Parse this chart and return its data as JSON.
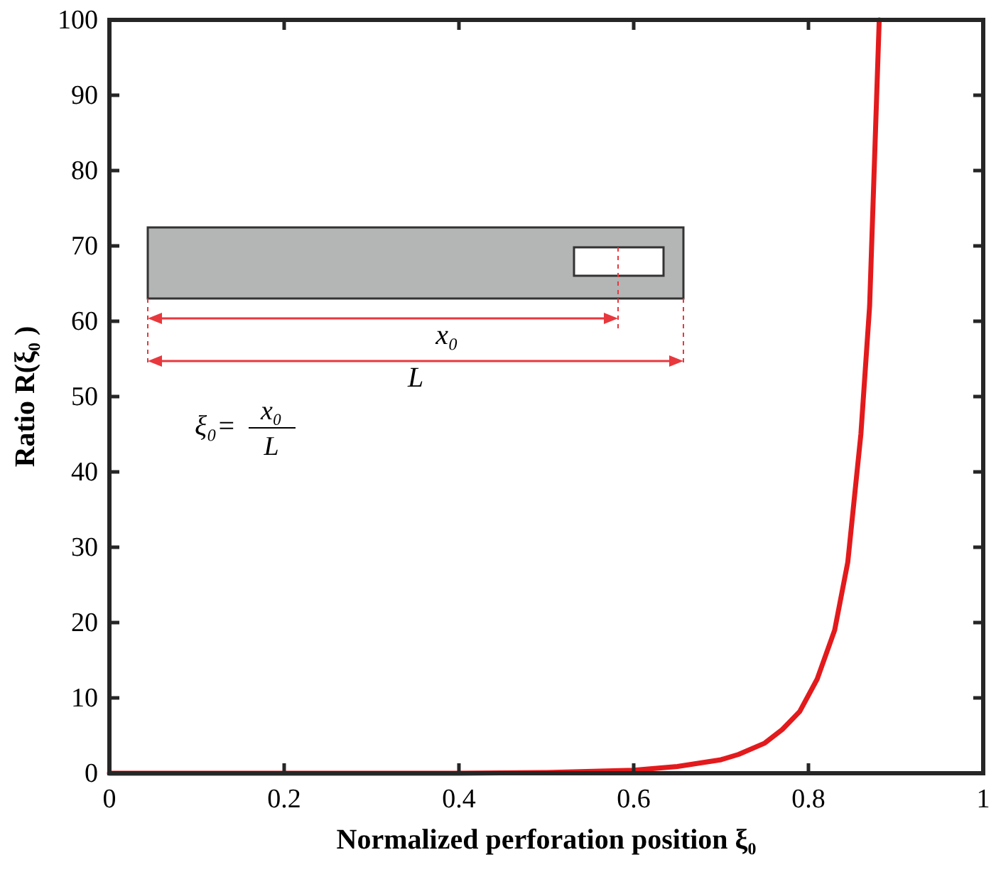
{
  "chart_data": {
    "type": "line",
    "xlabel": "Normalized perforation position ξ₀",
    "ylabel": "Ratio R(ξ₀ )",
    "series": [
      {
        "color": "#e31a1c",
        "x": [
          0,
          0.2,
          0.4,
          0.5,
          0.6,
          0.65,
          0.7,
          0.72,
          0.75,
          0.77,
          0.79,
          0.81,
          0.83,
          0.845,
          0.86,
          0.87,
          0.881
        ],
        "values": [
          0,
          0,
          0,
          0.1,
          0.4,
          0.9,
          1.8,
          2.5,
          4,
          5.8,
          8.2,
          12.5,
          19,
          28,
          45,
          62,
          100
        ]
      }
    ],
    "xlim": [
      0,
      1
    ],
    "xticks": [
      0,
      0.2,
      0.4,
      0.6,
      0.8,
      1
    ],
    "ylim": [
      0,
      100
    ],
    "yticks": [
      0,
      10,
      20,
      30,
      40,
      50,
      60,
      70,
      80,
      90,
      100
    ],
    "annotations": [
      "x₀",
      "L",
      "ξ₀=",
      "x₀",
      "L"
    ],
    "marker": "none",
    "line_style": "solid",
    "grid": false
  }
}
